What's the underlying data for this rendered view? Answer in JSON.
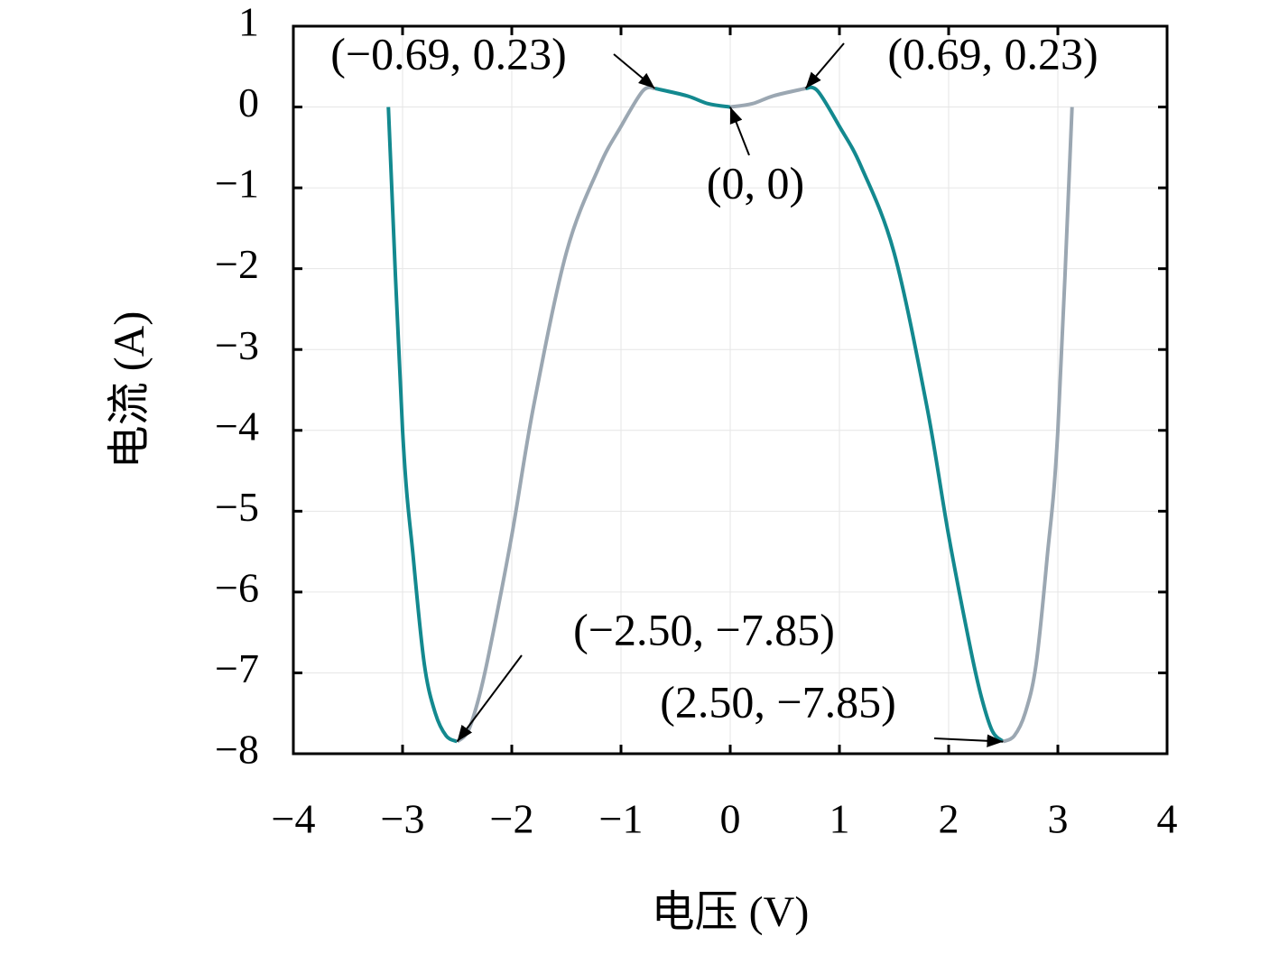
{
  "chart_data": {
    "type": "line",
    "xlabel": "电压 (V)",
    "ylabel": "电流 (A)",
    "x": [
      -3.13,
      -3.0,
      -2.9,
      -2.8,
      -2.7,
      -2.6,
      -2.5,
      -2.4,
      -2.3,
      -2.2,
      -2.0,
      -1.8,
      -1.5,
      -1.2,
      -1.0,
      -0.8,
      -0.69,
      -0.4,
      -0.2,
      0,
      0.2,
      0.4,
      0.69,
      0.8,
      1.0,
      1.2,
      1.5,
      1.8,
      2.0,
      2.2,
      2.3,
      2.4,
      2.5,
      2.6,
      2.7,
      2.8,
      2.9,
      3.0,
      3.13
    ],
    "series": [
      {
        "color": "#13898f",
        "values": [
          0,
          -4.0,
          -5.6,
          -6.9,
          -7.5,
          -7.78,
          -7.85,
          null,
          null,
          null,
          null,
          null,
          null,
          null,
          null,
          null,
          0.23,
          0.14,
          0.04,
          0,
          null,
          null,
          0.23,
          0.2,
          -0.24,
          -0.74,
          -1.8,
          -3.7,
          -5.3,
          -6.7,
          -7.3,
          -7.72,
          -7.85,
          null,
          null,
          null,
          null,
          null,
          null
        ]
      },
      {
        "color": "#9ba7b2",
        "values": [
          null,
          null,
          null,
          null,
          null,
          null,
          -7.85,
          -7.72,
          -7.3,
          -6.7,
          -5.3,
          -3.7,
          -1.8,
          -0.74,
          -0.24,
          0.2,
          0.23,
          null,
          null,
          0,
          0.04,
          0.14,
          0.23,
          null,
          null,
          null,
          null,
          null,
          null,
          null,
          null,
          null,
          -7.85,
          -7.78,
          -7.5,
          -6.9,
          -5.6,
          -4.0,
          0
        ]
      }
    ],
    "xlim": [
      -4,
      4
    ],
    "xticks": [
      {
        "value": -4,
        "label": "−4"
      },
      {
        "value": -3,
        "label": "−3"
      },
      {
        "value": -2,
        "label": "−2"
      },
      {
        "value": -1,
        "label": "−1"
      },
      0,
      1,
      2,
      3,
      4
    ],
    "ylim": [
      -8,
      1
    ],
    "yticks": [
      {
        "value": -8,
        "label": "−8"
      },
      {
        "value": -7,
        "label": "−7"
      },
      {
        "value": -6,
        "label": "−6"
      },
      {
        "value": -5,
        "label": "−5"
      },
      {
        "value": -4,
        "label": "−4"
      },
      {
        "value": -3,
        "label": "−3"
      },
      {
        "value": -2,
        "label": "−2"
      },
      {
        "value": -1,
        "label": "−1"
      },
      0,
      1
    ],
    "grid": true,
    "annotations": [
      {
        "text": "(−0.69, 0.23)",
        "xy": [
          -0.69,
          0.23
        ]
      },
      {
        "text": "(0.69, 0.23)",
        "xy": [
          0.69,
          0.23
        ]
      },
      {
        "text": "(0, 0)",
        "xy": [
          0,
          0
        ]
      },
      {
        "text": "(−2.50, −7.85)",
        "xy": [
          -2.5,
          -7.85
        ]
      },
      {
        "text": "(2.50, −7.85)",
        "xy": [
          2.5,
          -7.85
        ]
      }
    ]
  }
}
